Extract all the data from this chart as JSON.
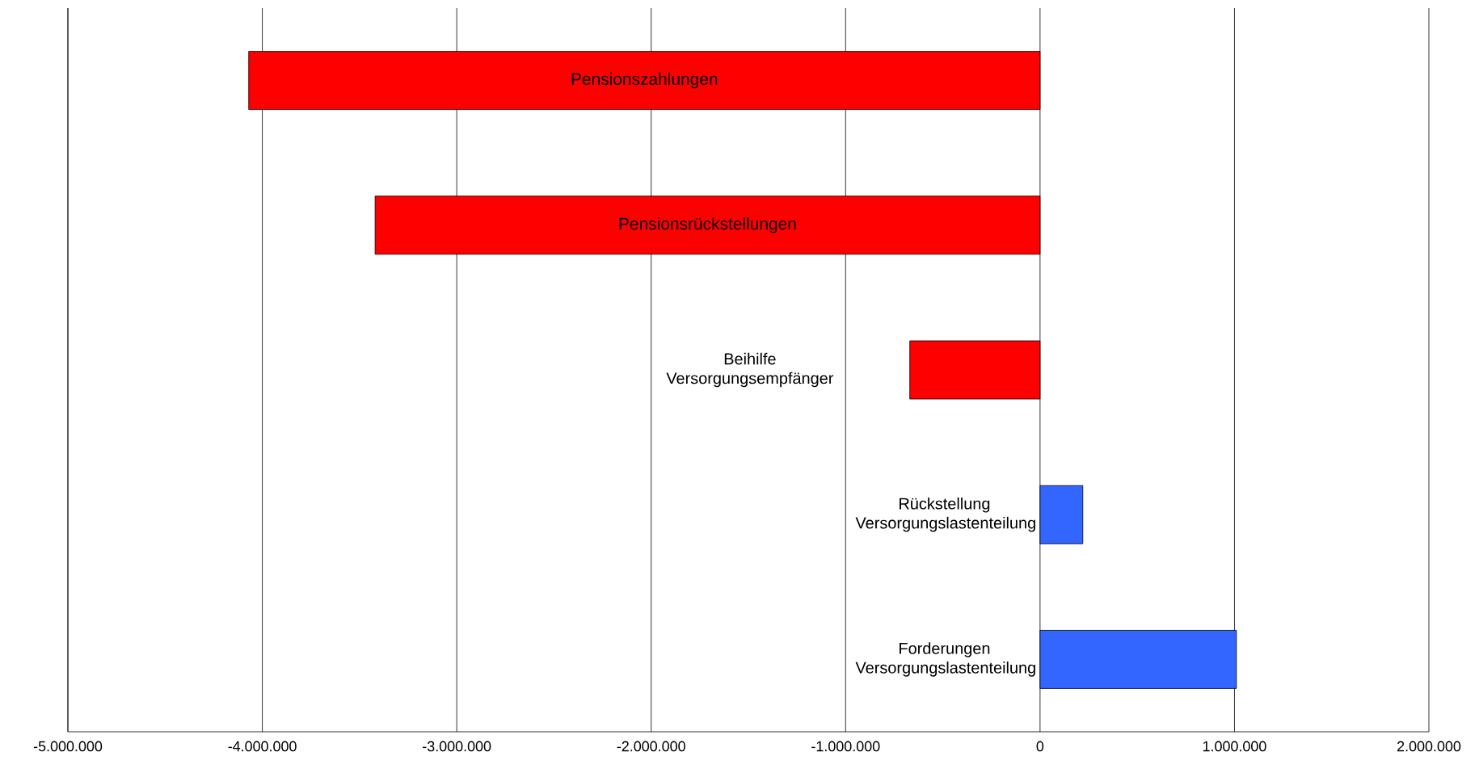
{
  "chart_data": {
    "type": "bar",
    "orientation": "horizontal",
    "categories": [
      "Pensionszahlungen",
      "Pensionsrückstellungen",
      "Beihilfe Versorgungsempfänger",
      "Rückstellung Versorgungslastenteilung",
      "Forderungen Versorgungslastenteilung"
    ],
    "values": [
      -4070000,
      -3420000,
      -670000,
      220000,
      1010000
    ],
    "colors": [
      "#ff0000",
      "#ff0000",
      "#ff0000",
      "#3366ff",
      "#3366ff"
    ],
    "xlim": [
      -5000000,
      2000000
    ],
    "xticks": [
      {
        "value": -5000000,
        "label": "-5.000.000"
      },
      {
        "value": -4000000,
        "label": "-4.000.000"
      },
      {
        "value": -3000000,
        "label": "-3.000.000"
      },
      {
        "value": -2000000,
        "label": "-2.000.000"
      },
      {
        "value": -1000000,
        "label": "-1.000.000"
      },
      0,
      {
        "value": 1000000,
        "label": "1.000.000"
      },
      {
        "value": 2000000,
        "label": "2.000.000"
      }
    ],
    "grid": "x"
  }
}
